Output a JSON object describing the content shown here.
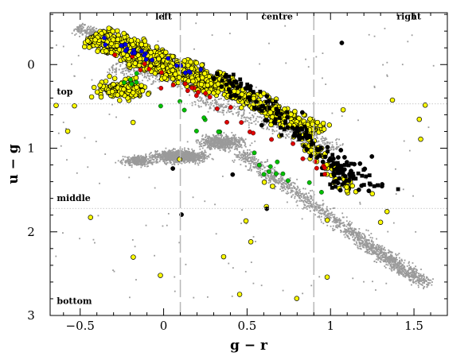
{
  "chart_data": {
    "type": "scatter",
    "title": "",
    "xlabel": "g − r",
    "ylabel": "u − g",
    "xlim": [
      -0.68,
      1.7
    ],
    "ylim": [
      -0.62,
      3.0
    ],
    "y_inverted": true,
    "grid": false,
    "x_ticks": [
      {
        "value": -0.5,
        "label": "−0.5"
      },
      {
        "value": 0,
        "label": "0"
      },
      {
        "value": 0.5,
        "label": "0.5"
      },
      {
        "value": 1,
        "label": "1"
      },
      {
        "value": 1.5,
        "label": "1.5"
      }
    ],
    "y_ticks": [
      {
        "value": 0,
        "label": "0"
      },
      {
        "value": 1,
        "label": "1"
      },
      {
        "value": 2,
        "label": "2"
      },
      {
        "value": 3,
        "label": "3"
      }
    ],
    "vertical_dividers": [
      0.1,
      0.9
    ],
    "horizontal_dividers": [
      0.47,
      1.72
    ],
    "region_labels": [
      {
        "text": "left",
        "x": 0.0,
        "y": -0.54
      },
      {
        "text": "centre",
        "x": 0.68,
        "y": -0.54
      },
      {
        "text": "right",
        "x": 1.47,
        "y": -0.54
      },
      {
        "text": "top",
        "x": -0.64,
        "y": 0.36
      },
      {
        "text": "middle",
        "x": -0.64,
        "y": 1.63
      },
      {
        "text": "bottom",
        "x": -0.64,
        "y": 2.86
      }
    ],
    "colors": {
      "background_points": "#9a9a9a",
      "yellow": "#ffff00",
      "black": "#000000",
      "red": "#e00000",
      "green": "#00c000",
      "blue": "#0000e0",
      "dividers": "#b8b8b8",
      "axes": "#000000"
    },
    "series": [
      {
        "description": "background cloud (grey)",
        "color": "#9a9a9a",
        "shape": "dot",
        "distribution": [
          {
            "kind": "diag",
            "from": [
              -0.52,
              -0.45
            ],
            "to": [
              0.0,
              0.0
            ],
            "width": 0.09,
            "n": 700
          },
          {
            "kind": "diag",
            "from": [
              -0.3,
              0.0
            ],
            "to": [
              0.55,
              0.4
            ],
            "width": 0.14,
            "n": 500
          },
          {
            "kind": "diag",
            "from": [
              0.2,
              0.4
            ],
            "to": [
              1.05,
              1.0
            ],
            "width": 0.12,
            "n": 450
          },
          {
            "kind": "blob",
            "center": [
              0.1,
              1.1
            ],
            "spread": [
              0.17,
              0.08
            ],
            "n": 1300
          },
          {
            "kind": "blob",
            "center": [
              0.35,
              0.93
            ],
            "spread": [
              0.14,
              0.1
            ],
            "n": 700
          },
          {
            "kind": "blob",
            "center": [
              -0.15,
              1.15
            ],
            "spread": [
              0.1,
              0.06
            ],
            "n": 350
          },
          {
            "kind": "diag",
            "from": [
              0.45,
              1.05
            ],
            "to": [
              1.55,
              2.6
            ],
            "width": 0.09,
            "n": 1300
          },
          {
            "kind": "diag",
            "from": [
              1.2,
              2.15
            ],
            "to": [
              1.6,
              2.65
            ],
            "width": 0.08,
            "n": 300
          },
          {
            "kind": "uniform",
            "xlim": [
              -0.65,
              1.65
            ],
            "ylim": [
              -0.5,
              2.8
            ],
            "n": 160
          }
        ]
      },
      {
        "description": "yellow circles",
        "color": "#ffff00",
        "shape": "circle",
        "distribution": [
          {
            "kind": "diag",
            "from": [
              -0.42,
              -0.35
            ],
            "to": [
              0.35,
              0.28
            ],
            "width": 0.17,
            "n": 900
          },
          {
            "kind": "diag",
            "from": [
              0.2,
              0.15
            ],
            "to": [
              0.95,
              0.8
            ],
            "width": 0.13,
            "n": 280
          },
          {
            "kind": "diag",
            "from": [
              0.75,
              0.7
            ],
            "to": [
              1.15,
              1.55
            ],
            "width": 0.08,
            "n": 80
          },
          {
            "kind": "blob",
            "center": [
              -0.25,
              0.3
            ],
            "spread": [
              0.15,
              0.12
            ],
            "n": 180
          },
          {
            "kind": "uniform",
            "xlim": [
              -0.65,
              1.65
            ],
            "ylim": [
              0.4,
              2.8
            ],
            "n": 28
          }
        ]
      },
      {
        "description": "black filled symbols",
        "color": "#000000",
        "shape": "circle-or-square",
        "distribution": [
          {
            "kind": "diag",
            "from": [
              0.35,
              0.1
            ],
            "to": [
              1.25,
              1.5
            ],
            "width": 0.13,
            "n": 150
          },
          {
            "kind": "blob",
            "center": [
              1.05,
              1.3
            ],
            "spread": [
              0.12,
              0.2
            ],
            "n": 40
          },
          {
            "kind": "uniform",
            "xlim": [
              0.0,
              1.6
            ],
            "ylim": [
              -0.4,
              2.4
            ],
            "n": 10
          }
        ]
      },
      {
        "description": "red filled circles",
        "color": "#e00000",
        "shape": "circle",
        "distribution": [
          {
            "kind": "diag",
            "from": [
              -0.35,
              -0.25
            ],
            "to": [
              1.0,
              1.3
            ],
            "width": 0.15,
            "n": 30
          }
        ]
      },
      {
        "description": "green filled circles",
        "color": "#00c000",
        "shape": "circle",
        "distribution": [
          {
            "kind": "diag",
            "from": [
              -0.3,
              0.05
            ],
            "to": [
              0.95,
              1.6
            ],
            "width": 0.15,
            "n": 24
          }
        ]
      },
      {
        "description": "blue filled circles",
        "color": "#0000e0",
        "shape": "circle",
        "distribution": [
          {
            "kind": "diag",
            "from": [
              -0.45,
              -0.35
            ],
            "to": [
              0.2,
              0.1
            ],
            "width": 0.09,
            "n": 22
          }
        ]
      }
    ]
  }
}
